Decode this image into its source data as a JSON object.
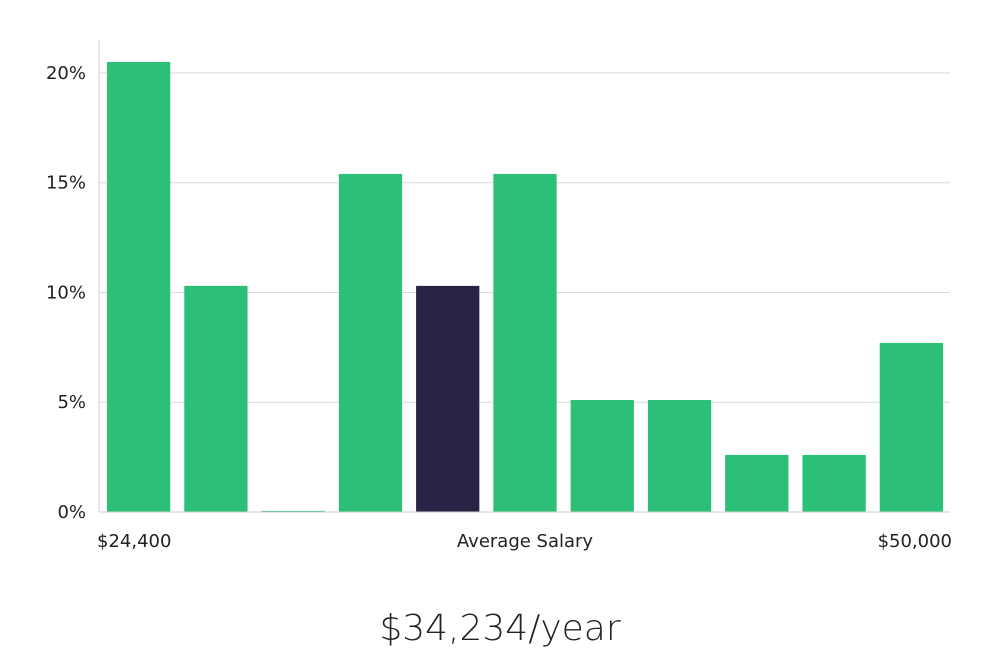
{
  "colors": {
    "bar": "#2bbf78",
    "highlight": "#282344",
    "grid": "#d9d9d9",
    "axis": "#cfcfcf"
  },
  "headline": "$34,234/year",
  "chart_data": {
    "type": "bar",
    "title": "",
    "xlabel": "Average Salary",
    "ylabel": "",
    "ylim": [
      0,
      21.5
    ],
    "yticks": [
      {
        "value": 0,
        "label": "0%"
      },
      {
        "value": 5,
        "label": "5%"
      },
      {
        "value": 10,
        "label": "10%"
      },
      {
        "value": 15,
        "label": "15%"
      },
      {
        "value": 20,
        "label": "20%"
      }
    ],
    "x_min_label": "$24,400",
    "x_max_label": "$50,000",
    "values": [
      20.5,
      10.3,
      0.05,
      15.4,
      10.3,
      15.4,
      5.1,
      5.1,
      2.6,
      2.6,
      7.7
    ],
    "highlight_index": 4
  }
}
